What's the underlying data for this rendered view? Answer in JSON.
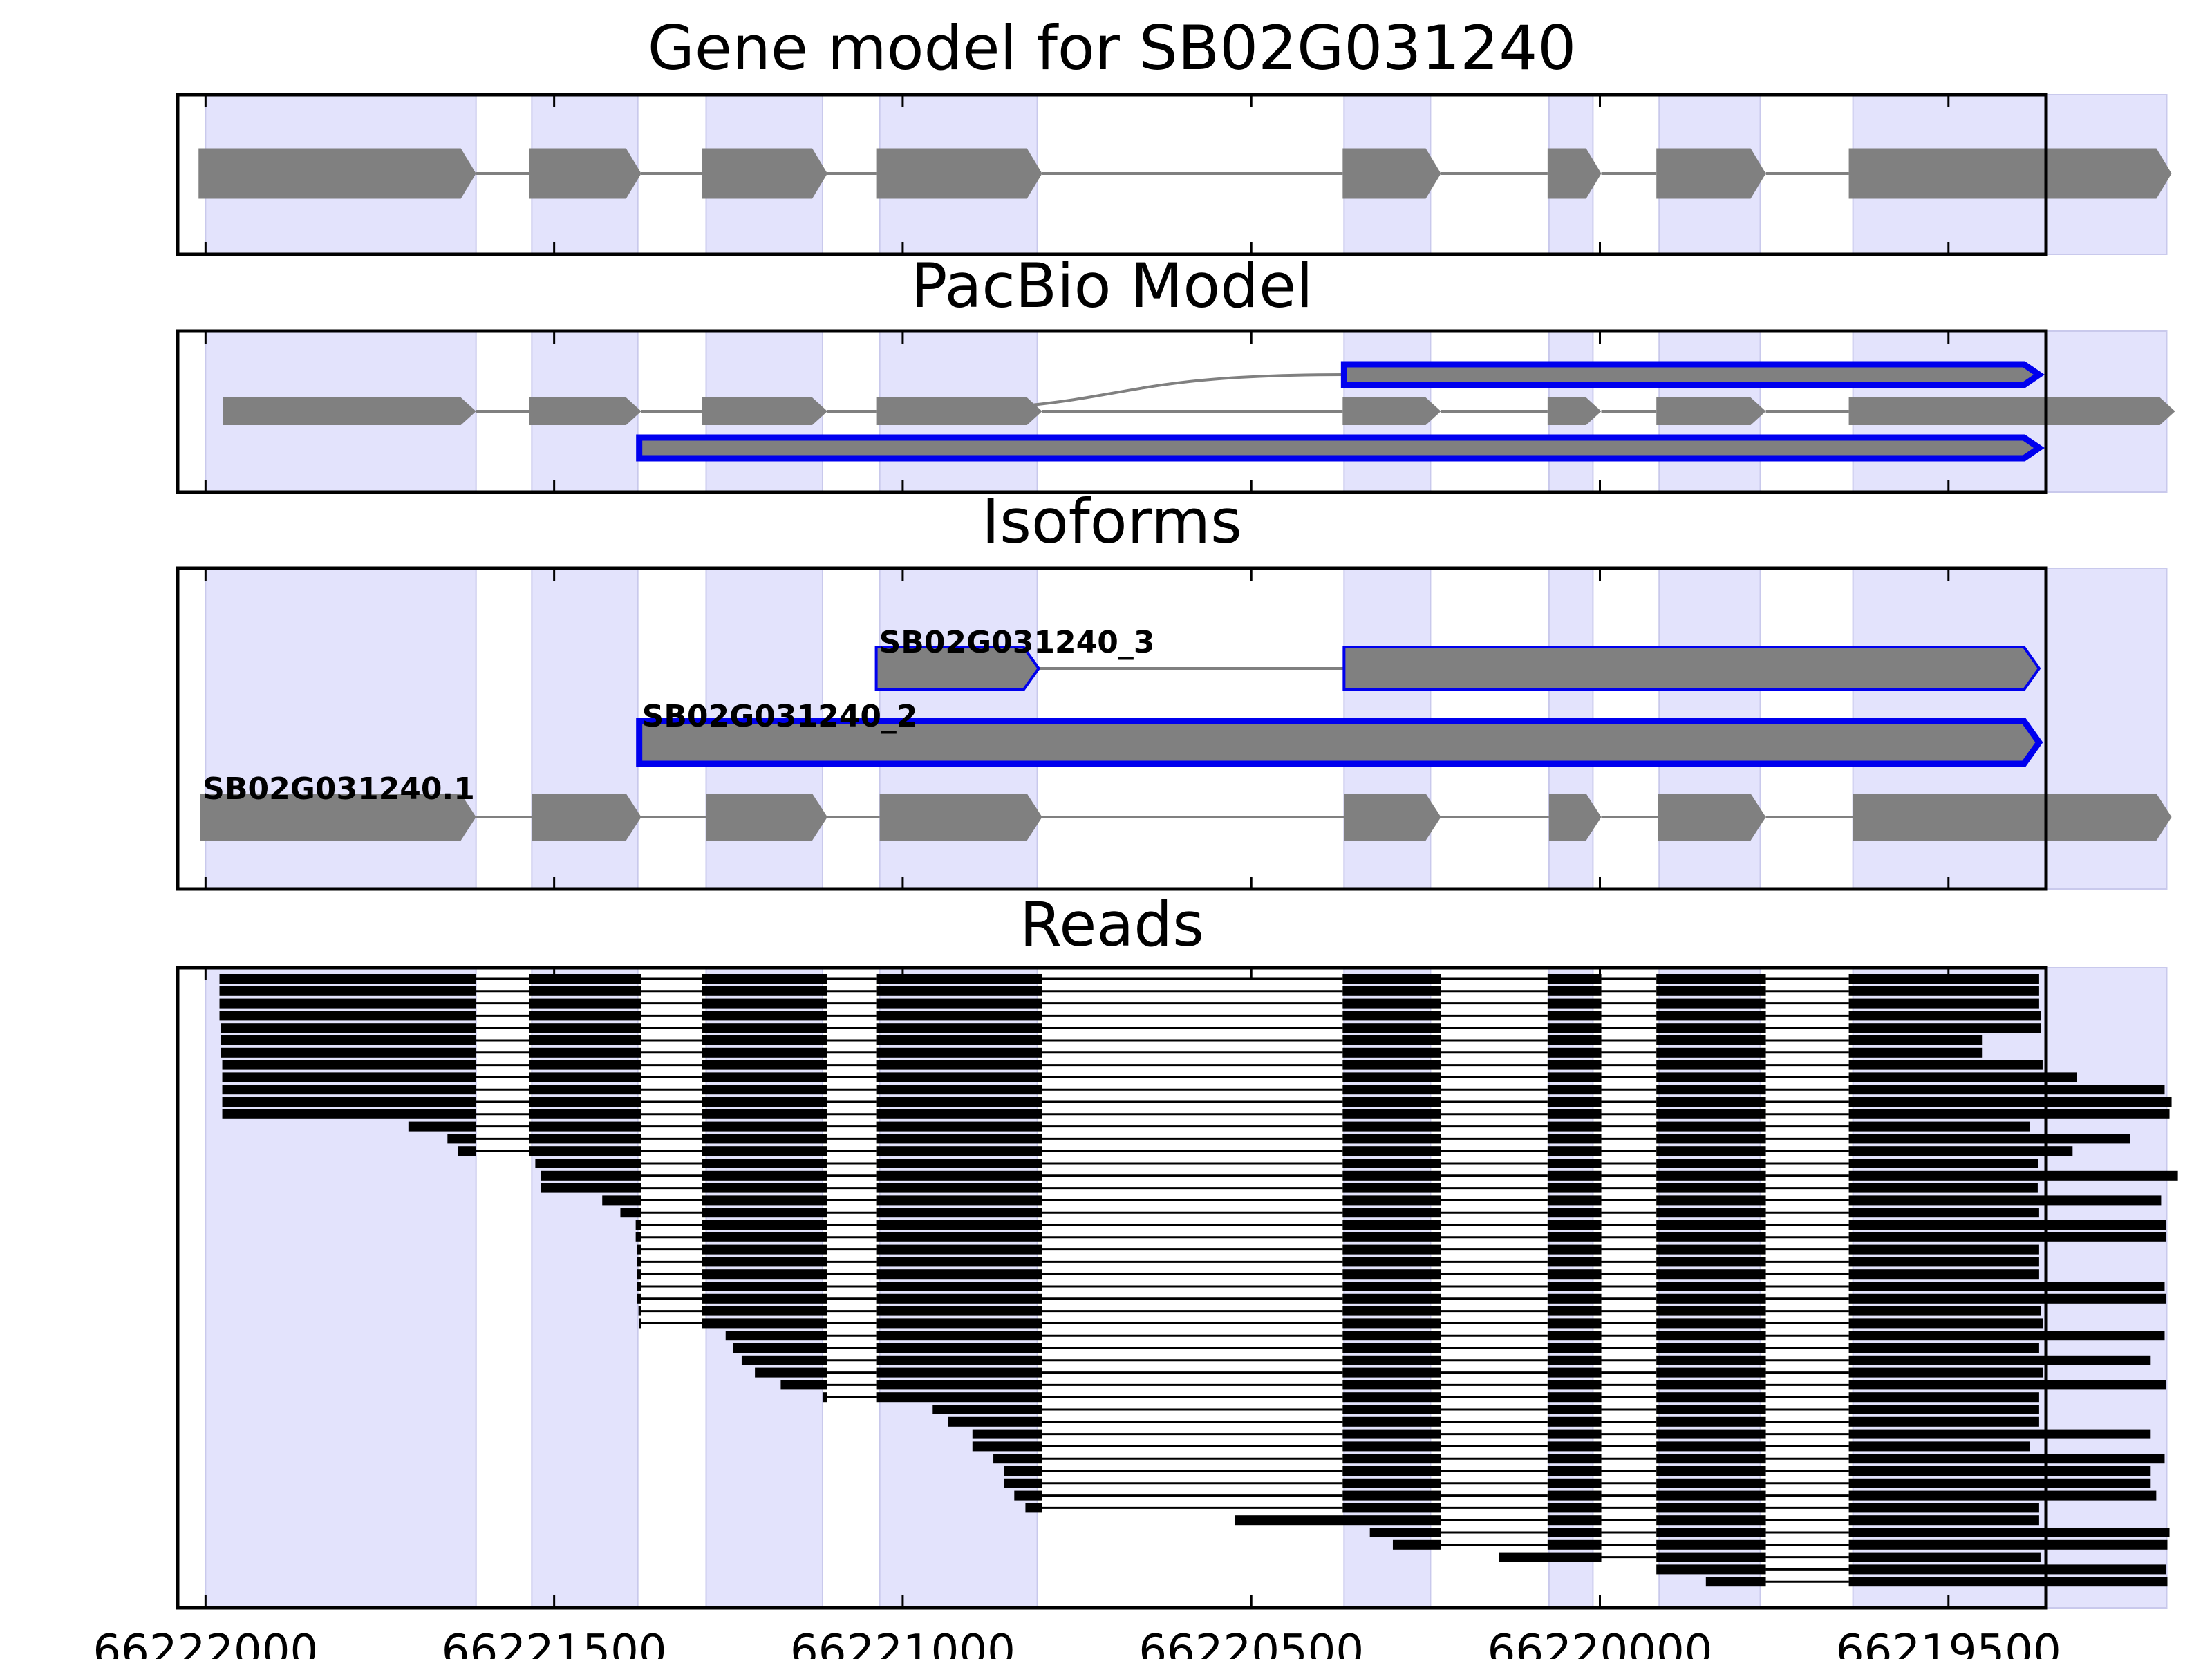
{
  "chart_data": {
    "type": "gene_track",
    "x_axis": {
      "reversed": true,
      "range": [
        66222040,
        66219360
      ],
      "ticks": [
        66222000,
        66221500,
        66221000,
        66220500,
        66220000,
        66219500
      ],
      "tick_labels": [
        "66222000",
        "66221500",
        "66221000",
        "66220500",
        "66220000",
        "66219500"
      ]
    },
    "colors": {
      "shade": "#e3e3fc",
      "exon": "#808080",
      "highlight": "#0000ee",
      "read": "#000000"
    },
    "shaded_exons": [
      [
        66222000,
        66221612
      ],
      [
        66221532,
        66221380
      ],
      [
        66221282,
        66221115
      ],
      [
        66221033,
        66220807
      ],
      [
        66220367,
        66220243
      ],
      [
        66220073,
        66220010
      ],
      [
        66219915,
        66219770
      ],
      [
        66219637,
        66219187
      ]
    ],
    "panels": [
      {
        "title": "Gene model for SB02G031240",
        "tracks": [
          {
            "exons": [
              [
                66222010,
                66221612
              ],
              [
                66221536,
                66221375
              ],
              [
                66221288,
                66221108
              ],
              [
                66221038,
                66220800
              ],
              [
                66220369,
                66220228
              ],
              [
                66220075,
                66219998
              ],
              [
                66219919,
                66219762
              ],
              [
                66219643,
                66219180
              ]
            ]
          }
        ]
      },
      {
        "title": "PacBio Model",
        "tracks": [
          {
            "from": 66221028,
            "to": 66220367,
            "exons": [
              [
                66220367,
                66219370
              ]
            ],
            "highlight": true
          },
          {
            "exons": [
              [
                66221975,
                66221612
              ],
              [
                66221536,
                66221375
              ],
              [
                66221288,
                66221108
              ],
              [
                66221038,
                66220800
              ],
              [
                66220369,
                66220228
              ],
              [
                66220075,
                66219998
              ],
              [
                66219919,
                66219762
              ],
              [
                66219643,
                66219175
              ]
            ]
          },
          {
            "exons": [
              [
                66221378,
                66219370
              ]
            ],
            "highlight": true
          }
        ]
      },
      {
        "title": "Isoforms",
        "tracks": [
          {
            "label": "SB02G031240_3",
            "exons": [
              [
                66221038,
                66220805
              ],
              [
                66220367,
                66219370
              ]
            ],
            "highlight": true
          },
          {
            "label": "SB02G031240_2",
            "exons": [
              [
                66221378,
                66219370
              ]
            ],
            "highlight": true
          },
          {
            "label": "SB02G031240.1",
            "exons": [
              [
                66222008,
                66221612
              ],
              [
                66221532,
                66221375
              ],
              [
                66221282,
                66221108
              ],
              [
                66221033,
                66220800
              ],
              [
                66220367,
                66220228
              ],
              [
                66220073,
                66219998
              ],
              [
                66219917,
                66219762
              ],
              [
                66219637,
                66219180
              ]
            ]
          }
        ]
      },
      {
        "title": "Reads"
      }
    ],
    "read_canonical_exons": [
      [
        66221612,
        66221536
      ],
      [
        66221375,
        66221288
      ],
      [
        66221108,
        66221038
      ],
      [
        66220800,
        66220369
      ],
      [
        66220228,
        66220075
      ],
      [
        66219998,
        66219919
      ],
      [
        66219762,
        66219643
      ]
    ],
    "reads": [
      [
        66221980,
        66219370
      ],
      [
        66221980,
        66219370
      ],
      [
        66221980,
        66219370
      ],
      [
        66221980,
        66219367
      ],
      [
        66221978,
        66219367
      ],
      [
        66221978,
        66219452
      ],
      [
        66221978,
        66219452
      ],
      [
        66221976,
        66219365
      ],
      [
        66221976,
        66219316
      ],
      [
        66221976,
        66219190
      ],
      [
        66221976,
        66219180
      ],
      [
        66221976,
        66219183
      ],
      [
        66221709,
        66219383
      ],
      [
        66221653,
        66219240
      ],
      [
        66221638,
        66219322
      ],
      [
        66221527,
        66219371
      ],
      [
        66221519,
        66219171
      ],
      [
        66221519,
        66219372
      ],
      [
        66221431,
        66219195
      ],
      [
        66221405,
        66219370
      ],
      [
        66221383,
        66219188
      ],
      [
        66221383,
        66219188
      ],
      [
        66221381,
        66219370
      ],
      [
        66221381,
        66219370
      ],
      [
        66221381,
        66219370
      ],
      [
        66221381,
        66219190
      ],
      [
        66221381,
        66219188
      ],
      [
        66221379,
        66219367
      ],
      [
        66221378,
        66219364
      ],
      [
        66221254,
        66219190
      ],
      [
        66221243,
        66219370
      ],
      [
        66221231,
        66219210
      ],
      [
        66221212,
        66219364
      ],
      [
        66221175,
        66219188
      ],
      [
        66221115,
        66219370
      ],
      [
        66220957,
        66219370
      ],
      [
        66220935,
        66219370
      ],
      [
        66220900,
        66219210
      ],
      [
        66220900,
        66219383
      ],
      [
        66220870,
        66219190
      ],
      [
        66220855,
        66219210
      ],
      [
        66220855,
        66219210
      ],
      [
        66220840,
        66219202
      ],
      [
        66220824,
        66219370
      ],
      [
        66220524,
        66219370
      ],
      [
        66220330,
        66219183
      ],
      [
        66220297,
        66219186
      ],
      [
        66220145,
        66219368
      ],
      [
        66219919,
        66219188
      ],
      [
        66219848,
        66219186
      ]
    ]
  }
}
